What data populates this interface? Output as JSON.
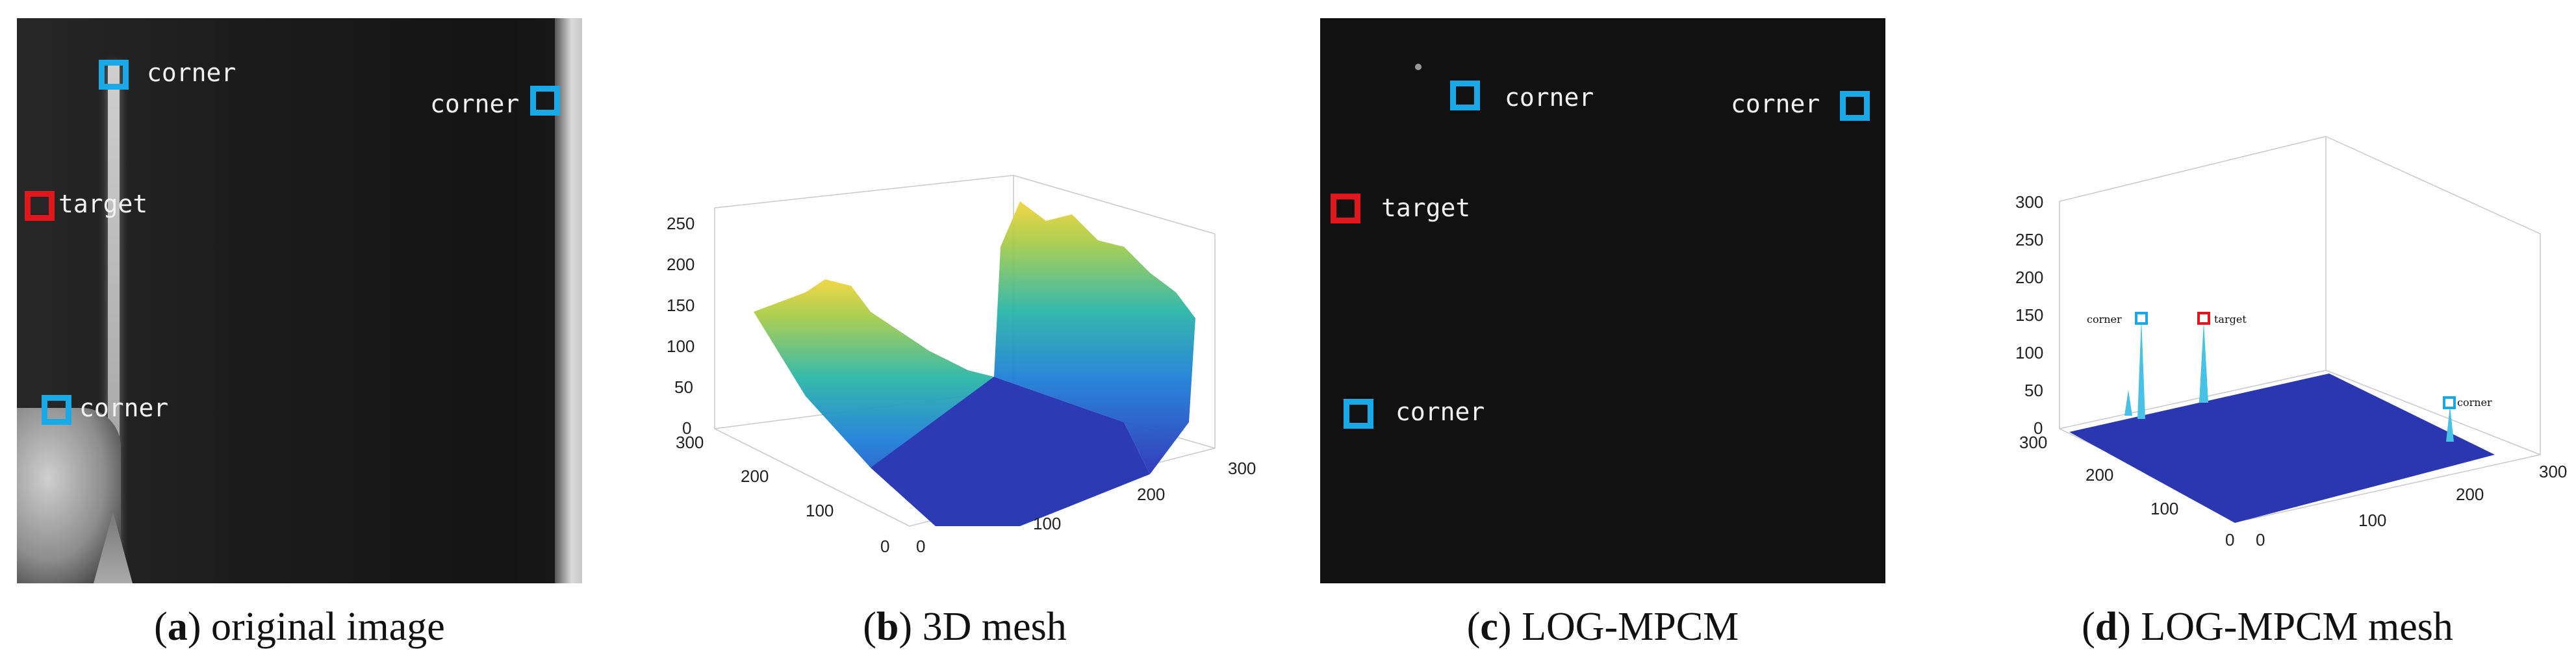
{
  "panels": [
    {
      "letter": "a",
      "title": "original image"
    },
    {
      "letter": "b",
      "title": "3D mesh"
    },
    {
      "letter": "c",
      "title": "LOG-MPCM"
    },
    {
      "letter": "d",
      "title": "LOG-MPCM mesh"
    }
  ],
  "labels": {
    "corner": "corner",
    "target": "target"
  },
  "colors": {
    "corner_marker": "#19a9e6",
    "target_marker": "#e0181d",
    "dark_bg": "#111111"
  },
  "chart_data": [
    {
      "type": "surface",
      "panel": "b",
      "zticks": [
        "0",
        "50",
        "100",
        "150",
        "200",
        "250"
      ],
      "yticks": [
        "0",
        "100",
        "200",
        "300"
      ],
      "xticks": [
        "0",
        "100",
        "200",
        "300"
      ],
      "zlim": [
        0,
        250
      ]
    },
    {
      "type": "surface",
      "panel": "d",
      "zticks": [
        "0",
        "50",
        "100",
        "150",
        "200",
        "250",
        "300"
      ],
      "yticks": [
        "0",
        "100",
        "200",
        "300"
      ],
      "xticks": [
        "0",
        "100",
        "200",
        "300"
      ],
      "zlim": [
        0,
        300
      ]
    }
  ]
}
